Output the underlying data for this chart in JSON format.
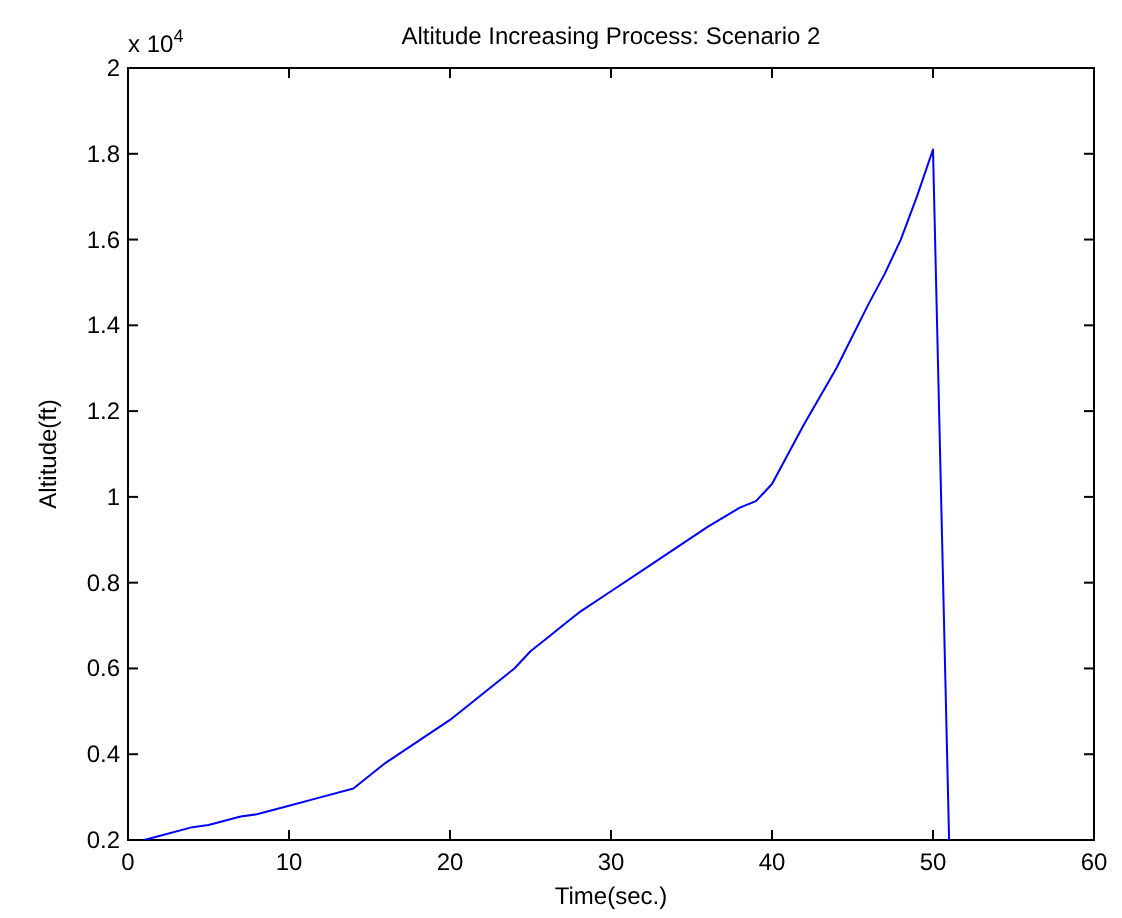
{
  "chart_data": {
    "type": "line",
    "title": "Altitude Increasing Process: Scenario 2",
    "xlabel": "Time(sec.)",
    "ylabel": "Altitude(ft)",
    "annotations": [
      "x 10$^{4}$"
    ],
    "xlim": [
      0,
      60
    ],
    "xticks": [
      0,
      10,
      20,
      30,
      40,
      50,
      60
    ],
    "ylim": [
      0.2,
      2
    ],
    "yticks": [
      0.2,
      0.4,
      0.6,
      0.8,
      1,
      1.2,
      1.4,
      1.6,
      1.8,
      2
    ],
    "series": [
      {
        "color": "#0000ff",
        "x": [
          1,
          2,
          4,
          5,
          7,
          8,
          10,
          12,
          14,
          16,
          18,
          20,
          22,
          24,
          25,
          26,
          27,
          28,
          30,
          32,
          34,
          36,
          38,
          39,
          40,
          42,
          44,
          46,
          47,
          48,
          49,
          50,
          51
        ],
        "values": [
          0.2,
          0.21,
          0.23,
          0.235,
          0.255,
          0.26,
          0.28,
          0.3,
          0.32,
          0.38,
          0.43,
          0.48,
          0.54,
          0.6,
          0.64,
          0.67,
          0.7,
          0.73,
          0.78,
          0.83,
          0.88,
          0.93,
          0.975,
          0.99,
          1.03,
          1.17,
          1.3,
          1.45,
          1.52,
          1.6,
          1.7,
          1.81,
          0.2
        ]
      }
    ],
    "grid": false
  }
}
